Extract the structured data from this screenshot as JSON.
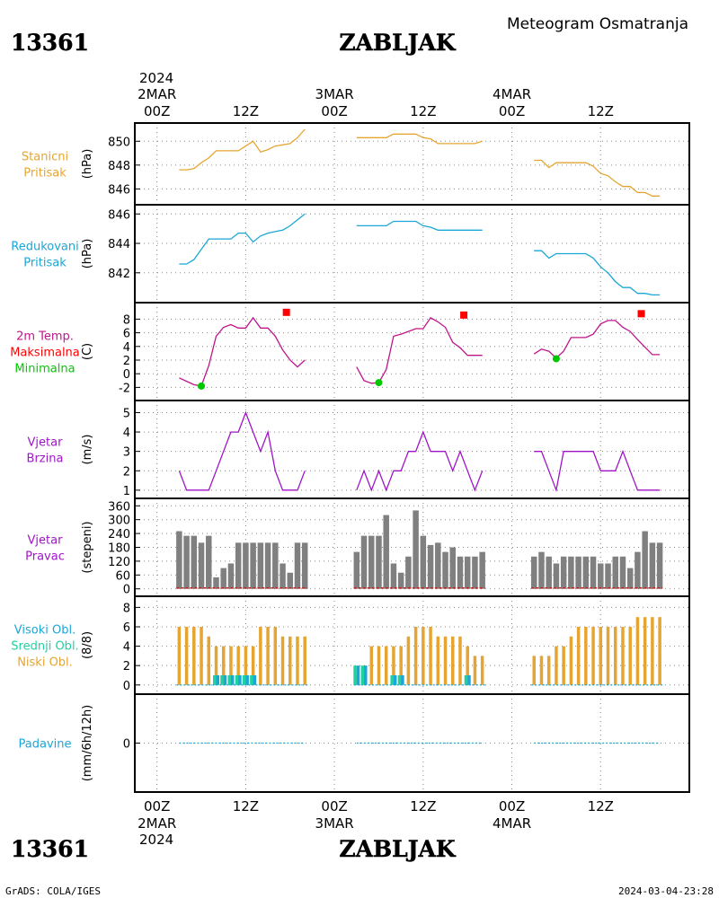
{
  "header": {
    "station_id": "13361",
    "station_name": "ZABLJAK",
    "product_title": "Meteogram Osmatranja"
  },
  "time_axis": {
    "top_year": "2024",
    "bottom_year": "2024",
    "dates": [
      "2MAR",
      "3MAR",
      "4MAR"
    ],
    "hour_labels": [
      "00Z",
      "12Z",
      "00Z",
      "12Z",
      "00Z",
      "12Z"
    ]
  },
  "footer": {
    "left": "GrADS: COLA/IGES",
    "right": "2024-03-04-23:28"
  },
  "colors": {
    "pressure_station": "#e6a532",
    "pressure_reduced": "#1aa6d6",
    "temperature": "#c0148c",
    "max_marker": "#ff0000",
    "min_marker": "#00c800",
    "wind": "#a014c8",
    "bars": "#808080",
    "cloud_high": "#1aa6d6",
    "cloud_mid": "#1ed2a0",
    "cloud_low": "#e6a532",
    "precip": "#1aa6d6"
  },
  "chart_data": [
    {
      "type": "line",
      "labels": [
        "Stanicni",
        "Pritisak"
      ],
      "ylabel": "(hPa)",
      "yticks": [
        846,
        848,
        850
      ],
      "ylim": [
        845.2,
        851
      ],
      "x_unit": "hours since 2MAR 00Z",
      "segments": [
        {
          "x": [
            3,
            4,
            5,
            6,
            7,
            8,
            9,
            10,
            11,
            12,
            13,
            14,
            15,
            16,
            17,
            18,
            19,
            20
          ],
          "y": [
            847.6,
            847.6,
            847.7,
            848.2,
            848.6,
            849.2,
            849.2,
            849.2,
            849.2,
            849.6,
            850,
            849.1,
            849.3,
            849.6,
            849.7,
            849.8,
            850.3,
            851
          ]
        },
        {
          "x": [
            27,
            28,
            29,
            30,
            31,
            32,
            33,
            34,
            35,
            36,
            37,
            38,
            39,
            40,
            41,
            42,
            43,
            44
          ],
          "y": [
            850.3,
            850.3,
            850.3,
            850.3,
            850.3,
            850.6,
            850.6,
            850.6,
            850.6,
            850.3,
            850.2,
            849.8,
            849.8,
            849.8,
            849.8,
            849.8,
            849.8,
            850
          ]
        },
        {
          "x": [
            51,
            52,
            53,
            54,
            55,
            56,
            57,
            58,
            59,
            60,
            61,
            62,
            63,
            64,
            65,
            66,
            67,
            68
          ],
          "y": [
            848.4,
            848.4,
            847.8,
            848.2,
            848.2,
            848.2,
            848.2,
            848.2,
            847.9,
            847.3,
            847.1,
            846.6,
            846.2,
            846.2,
            845.7,
            845.7,
            845.4,
            845.4
          ]
        }
      ]
    },
    {
      "type": "line",
      "labels": [
        "Redukovani",
        "Pritisak"
      ],
      "ylabel": "(hPa)",
      "yticks": [
        842,
        844,
        846
      ],
      "ylim": [
        840.4,
        846.2
      ],
      "x_unit": "hours since 2MAR 00Z",
      "segments": [
        {
          "x": [
            3,
            4,
            5,
            6,
            7,
            8,
            9,
            10,
            11,
            12,
            13,
            14,
            15,
            16,
            17,
            18,
            19,
            20
          ],
          "y": [
            842.6,
            842.6,
            842.9,
            843.6,
            844.3,
            844.3,
            844.3,
            844.3,
            844.7,
            844.7,
            844.1,
            844.5,
            844.7,
            844.8,
            844.9,
            845.2,
            845.6,
            846
          ]
        },
        {
          "x": [
            27,
            28,
            29,
            30,
            31,
            32,
            33,
            34,
            35,
            36,
            37,
            38,
            39,
            40,
            41,
            42,
            43,
            44
          ],
          "y": [
            845.2,
            845.2,
            845.2,
            845.2,
            845.2,
            845.5,
            845.5,
            845.5,
            845.5,
            845.2,
            845.1,
            844.9,
            844.9,
            844.9,
            844.9,
            844.9,
            844.9,
            844.9
          ]
        },
        {
          "x": [
            51,
            52,
            53,
            54,
            55,
            56,
            57,
            58,
            59,
            60,
            61,
            62,
            63,
            64,
            65,
            66,
            67,
            68
          ],
          "y": [
            843.5,
            843.5,
            843,
            843.3,
            843.3,
            843.3,
            843.3,
            843.3,
            843,
            842.4,
            842,
            841.4,
            841,
            841,
            840.6,
            840.6,
            840.5,
            840.5
          ]
        }
      ]
    },
    {
      "type": "line",
      "labels": [
        "2m Temp.",
        "Maksimalna",
        "Minimalna"
      ],
      "ylabel": "(C)",
      "yticks": [
        -2,
        0,
        2,
        4,
        6,
        8
      ],
      "ylim": [
        -3,
        9.5
      ],
      "x_unit": "hours since 2MAR 00Z",
      "segments": [
        {
          "x": [
            3,
            4,
            5,
            6,
            7,
            8,
            9,
            10,
            11,
            12,
            13,
            14,
            15,
            16,
            17,
            18,
            19,
            20
          ],
          "y": [
            -0.6,
            -1.1,
            -1.6,
            -1.8,
            1.2,
            5.5,
            6.8,
            7.2,
            6.7,
            6.7,
            8.2,
            6.7,
            6.7,
            5.5,
            3.5,
            2,
            1,
            2
          ]
        },
        {
          "x": [
            27,
            28,
            29,
            30,
            31,
            32,
            33,
            34,
            35,
            36,
            37,
            38,
            39,
            40,
            41,
            42,
            43,
            44
          ],
          "y": [
            1,
            -1,
            -1.4,
            -1.3,
            0.6,
            5.5,
            5.8,
            6.2,
            6.6,
            6.6,
            8.2,
            7.6,
            6.8,
            4.6,
            3.8,
            2.7,
            2.7,
            2.7
          ]
        },
        {
          "x": [
            51,
            52,
            53,
            54,
            55,
            56,
            57,
            58,
            59,
            60,
            61,
            62,
            63,
            64,
            65,
            66,
            67,
            68
          ],
          "y": [
            2.9,
            3.6,
            3.3,
            2.3,
            3.3,
            5.3,
            5.3,
            5.3,
            5.8,
            7.3,
            7.8,
            7.8,
            6.8,
            6.2,
            5,
            3.9,
            2.8,
            2.8
          ]
        }
      ],
      "max_markers": [
        {
          "x": 17.5,
          "y": 9
        },
        {
          "x": 41.5,
          "y": 8.6
        },
        {
          "x": 65.5,
          "y": 8.8
        }
      ],
      "min_markers": [
        {
          "x": 6,
          "y": -1.8
        },
        {
          "x": 30,
          "y": -1.3
        },
        {
          "x": 54,
          "y": 2.2
        }
      ]
    },
    {
      "type": "line",
      "labels": [
        "Vjetar",
        "Brzina"
      ],
      "ylabel": "(m/s)",
      "yticks": [
        1,
        2,
        3,
        4,
        5
      ],
      "ylim": [
        0.9,
        5.3
      ],
      "x_unit": "hours since 2MAR 00Z",
      "segments": [
        {
          "x": [
            3,
            4,
            5,
            6,
            7,
            8,
            9,
            10,
            11,
            12,
            13,
            14,
            15,
            16,
            17,
            18,
            19,
            20
          ],
          "y": [
            2,
            1,
            1,
            1,
            1,
            2,
            3,
            4,
            4,
            5,
            4,
            3,
            4,
            2,
            1,
            1,
            1,
            2
          ]
        },
        {
          "x": [
            27,
            28,
            29,
            30,
            31,
            32,
            33,
            34,
            35,
            36,
            37,
            38,
            39,
            40,
            41,
            42,
            43,
            44
          ],
          "y": [
            1,
            2,
            1,
            2,
            1,
            2,
            2,
            3,
            3,
            4,
            3,
            3,
            3,
            2,
            3,
            2,
            1,
            2
          ]
        },
        {
          "x": [
            51,
            52,
            53,
            54,
            55,
            56,
            57,
            58,
            59,
            60,
            61,
            62,
            63,
            64,
            65,
            66,
            67,
            68
          ],
          "y": [
            3,
            3,
            2,
            1,
            3,
            3,
            3,
            3,
            3,
            2,
            2,
            2,
            3,
            2,
            1,
            1,
            1,
            1
          ]
        }
      ]
    },
    {
      "type": "bar",
      "labels": [
        "Vjetar",
        "Pravac"
      ],
      "ylabel": "(stepeni)",
      "yticks": [
        0,
        60,
        120,
        180,
        240,
        300,
        360
      ],
      "ylim": [
        -5,
        365
      ],
      "x_unit": "hours since 2MAR 00Z",
      "x": [
        3,
        4,
        5,
        6,
        7,
        8,
        9,
        10,
        11,
        12,
        13,
        14,
        15,
        16,
        17,
        18,
        19,
        20,
        27,
        28,
        29,
        30,
        31,
        32,
        33,
        34,
        35,
        36,
        37,
        38,
        39,
        40,
        41,
        42,
        43,
        44,
        51,
        52,
        53,
        54,
        55,
        56,
        57,
        58,
        59,
        60,
        61,
        62,
        63,
        64,
        65,
        66,
        67,
        68
      ],
      "values": [
        250,
        230,
        230,
        200,
        230,
        50,
        90,
        110,
        200,
        200,
        200,
        200,
        200,
        200,
        110,
        70,
        200,
        200,
        160,
        230,
        230,
        230,
        320,
        110,
        70,
        140,
        340,
        230,
        190,
        200,
        160,
        180,
        140,
        140,
        140,
        160,
        140,
        160,
        140,
        110,
        140,
        140,
        140,
        140,
        140,
        110,
        110,
        140,
        140,
        90,
        160,
        250,
        200,
        200
      ]
    },
    {
      "type": "bar",
      "labels": [
        "Visoki Obl.",
        "Srednji Obl.",
        "Niski Obl."
      ],
      "ylabel": "(8/8)",
      "yticks": [
        0,
        2,
        4,
        6,
        8
      ],
      "ylim": [
        -0.3,
        8.5
      ],
      "x_unit": "hours since 2MAR 00Z",
      "x": [
        3,
        4,
        5,
        6,
        7,
        8,
        9,
        10,
        11,
        12,
        13,
        14,
        15,
        16,
        17,
        18,
        19,
        20,
        27,
        28,
        29,
        30,
        31,
        32,
        33,
        34,
        35,
        36,
        37,
        38,
        39,
        40,
        41,
        42,
        43,
        44,
        51,
        52,
        53,
        54,
        55,
        56,
        57,
        58,
        59,
        60,
        61,
        62,
        63,
        64,
        65,
        66,
        67,
        68
      ],
      "series": [
        {
          "name": "Niski Obl.",
          "values": [
            6,
            6,
            6,
            6,
            5,
            4,
            4,
            4,
            4,
            4,
            4,
            6,
            6,
            6,
            5,
            5,
            5,
            5,
            1,
            1,
            4,
            4,
            4,
            4,
            4,
            5,
            6,
            6,
            6,
            5,
            5,
            5,
            5,
            4,
            3,
            3,
            3,
            3,
            3,
            4,
            4,
            5,
            6,
            6,
            6,
            6,
            6,
            6,
            6,
            6,
            7,
            7,
            7,
            7
          ]
        },
        {
          "name": "Srednji Obl.",
          "values": [
            0,
            0,
            0,
            0,
            0,
            1,
            1,
            1,
            1,
            1,
            1,
            0,
            0,
            0,
            0,
            0,
            0,
            0,
            2,
            2,
            0,
            0,
            0,
            1,
            1,
            0,
            0,
            0,
            0,
            0,
            0,
            0,
            0,
            1,
            0,
            0,
            0,
            0,
            0,
            0,
            0,
            0,
            0,
            0,
            0,
            0,
            0,
            0,
            0,
            0,
            0,
            0,
            0,
            0
          ]
        },
        {
          "name": "Visoki Obl.",
          "values": [
            0,
            0,
            0,
            0,
            0,
            1,
            1,
            1,
            1,
            1,
            1,
            0,
            0,
            0,
            0,
            0,
            0,
            0,
            2,
            2,
            0,
            0,
            0,
            1,
            1,
            0,
            0,
            0,
            0,
            0,
            0,
            0,
            0,
            1,
            0,
            0,
            0,
            0,
            0,
            0,
            0,
            0,
            0,
            0,
            0,
            0,
            0,
            0,
            0,
            0,
            0,
            0,
            0,
            0
          ]
        }
      ]
    },
    {
      "type": "line",
      "labels": [
        "Padavine"
      ],
      "ylabel": "(mm/6h/12h)",
      "yticks": [
        0
      ],
      "ylim": [
        -1,
        1
      ],
      "x_unit": "hours since 2MAR 00Z",
      "segments": [
        {
          "x": [
            3,
            20
          ],
          "y": [
            0,
            0
          ]
        },
        {
          "x": [
            27,
            44
          ],
          "y": [
            0,
            0
          ]
        },
        {
          "x": [
            51,
            68
          ],
          "y": [
            0,
            0
          ]
        }
      ]
    }
  ]
}
